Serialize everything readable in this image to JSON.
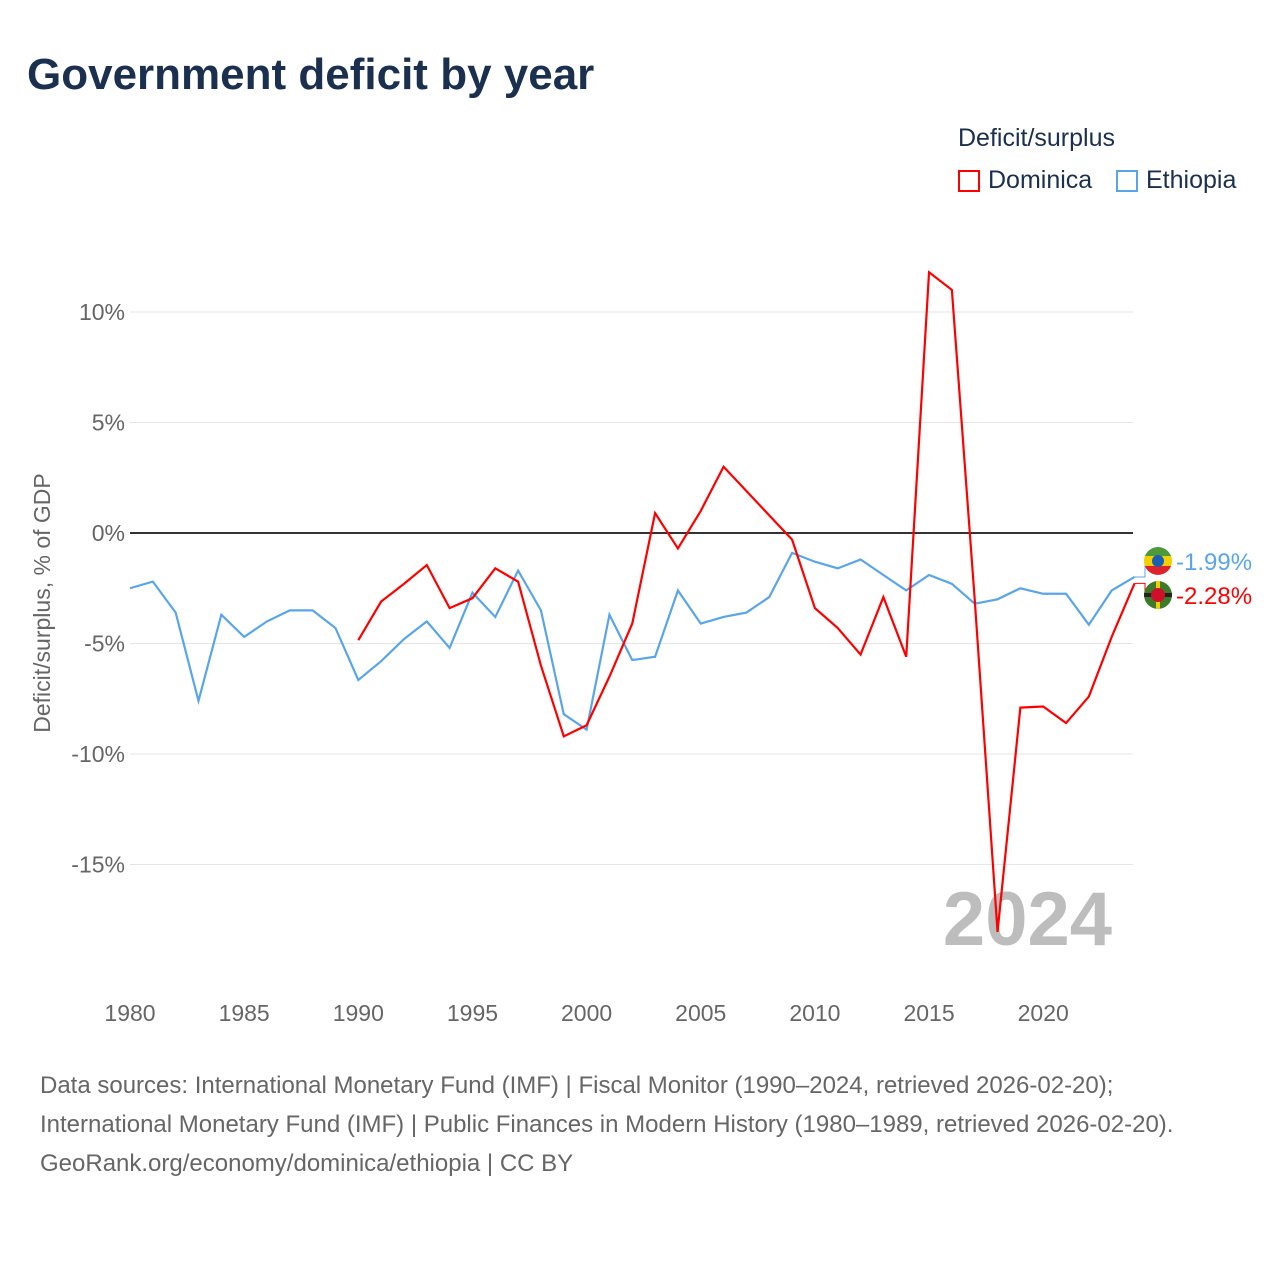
{
  "title": "Government deficit by year",
  "legend": {
    "title": "Deficit/surplus",
    "items": [
      {
        "name": "Dominica",
        "color": "#ff0000"
      },
      {
        "name": "Ethiopia",
        "color": "#5aa5ea"
      }
    ]
  },
  "chart_data": {
    "type": "line",
    "ylabel": "Deficit/surplus, % of GDP",
    "yticks": [
      10,
      5,
      0,
      -5,
      -10,
      -15
    ],
    "ytick_labels": [
      "10%",
      "5%",
      "0%",
      "-5%",
      "-10%",
      "-15%"
    ],
    "xticks": [
      1980,
      1985,
      1990,
      1995,
      2000,
      2005,
      2010,
      2015,
      2020
    ],
    "xtick_labels": [
      "1980",
      "1985",
      "1990",
      "1995",
      "2000",
      "2005",
      "2010",
      "2015",
      "2020"
    ],
    "xlim": [
      1980,
      2024
    ],
    "ylim": [
      -20,
      12
    ],
    "year_watermark": "2024",
    "series": [
      {
        "name": "Ethiopia",
        "color": "#5aa5ea",
        "start_year": 1980,
        "end_label": "-1.99%",
        "values": [
          -2.5,
          -2.2,
          -3.6,
          -7.6,
          -3.7,
          -4.7,
          -4.0,
          -3.5,
          -3.5,
          -4.3,
          -6.65,
          -5.8,
          -4.8,
          -4.0,
          -5.2,
          -2.7,
          -3.8,
          -1.7,
          -3.5,
          -8.2,
          -8.9,
          -3.7,
          -5.75,
          -5.6,
          -2.6,
          -4.1,
          -3.8,
          -3.6,
          -2.9,
          -0.9,
          -1.3,
          -1.6,
          -1.2,
          -1.9,
          -2.6,
          -1.9,
          -2.3,
          -3.2,
          -3.0,
          -2.5,
          -2.75,
          -2.75,
          -4.15,
          -2.6,
          -1.99
        ]
      },
      {
        "name": "Dominica",
        "color": "#ff0000",
        "start_year": 1990,
        "end_label": "-2.28%",
        "values": [
          -4.85,
          -3.1,
          -2.3,
          -1.45,
          -3.4,
          -2.95,
          -1.6,
          -2.2,
          -6.0,
          -9.2,
          -8.7,
          -6.5,
          -4.1,
          0.9,
          -0.7,
          1.0,
          3.0,
          1.9,
          0.8,
          -0.3,
          -3.4,
          -4.3,
          -5.5,
          -2.9,
          -5.6,
          11.8,
          11.0,
          -3.0,
          -18.05,
          -7.9,
          -7.85,
          -8.6,
          -7.4,
          -4.7,
          -2.28
        ]
      }
    ]
  },
  "footer": {
    "line1": "Data sources: International Monetary Fund (IMF) | Fiscal Monitor (1990–2024, retrieved 2026-02-20); International Monetary Fund (IMF) | Public Finances in Modern History (1980–1989, retrieved 2026-02-20).",
    "line2": "GeoRank.org/economy/dominica/ethiopia | CC BY"
  }
}
